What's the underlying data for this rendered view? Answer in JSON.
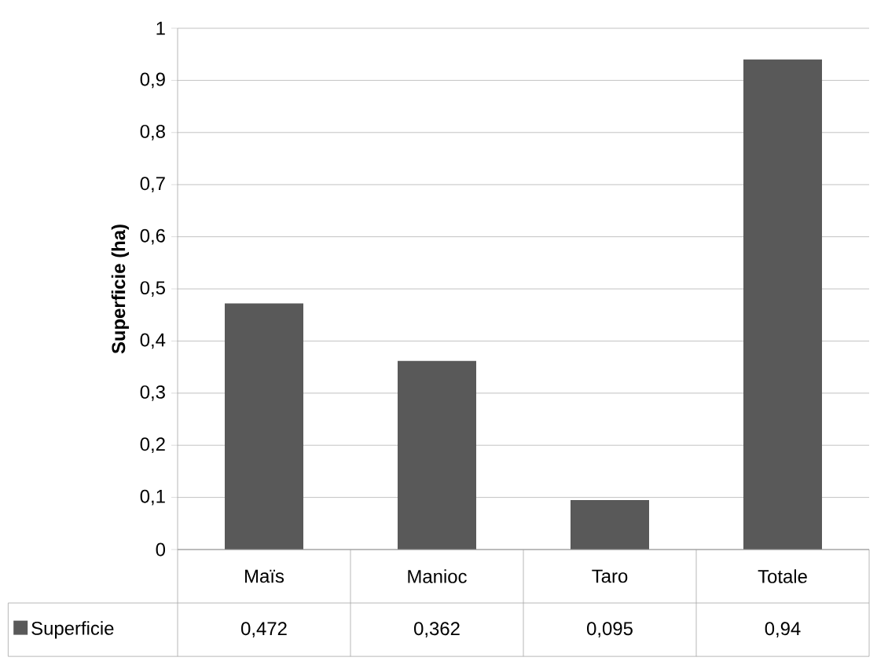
{
  "chart_data": {
    "type": "bar",
    "ylabel": "Superficie (ha)",
    "categories": [
      "Maïs",
      "Manioc",
      "Taro",
      "Totale"
    ],
    "series": [
      {
        "name": "Superficie",
        "color": "#595959",
        "values": [
          0.472,
          0.362,
          0.095,
          0.94
        ],
        "value_labels": [
          "0,472",
          "0,362",
          "0,095",
          "0,94"
        ]
      }
    ],
    "ylim": [
      0,
      1
    ],
    "yticks": [
      0,
      {
        "value": 0.1,
        "label": "0,1"
      },
      {
        "value": 0.2,
        "label": "0,2"
      },
      {
        "value": 0.3,
        "label": "0,3"
      },
      {
        "value": 0.4,
        "label": "0,4"
      },
      {
        "value": 0.5,
        "label": "0,5"
      },
      {
        "value": 0.6,
        "label": "0,6"
      },
      {
        "value": 0.7,
        "label": "0,7"
      },
      {
        "value": 0.8,
        "label": "0,8"
      },
      {
        "value": 0.9,
        "label": "0,9"
      },
      1
    ],
    "grid": "y",
    "legend": "bottom left"
  }
}
